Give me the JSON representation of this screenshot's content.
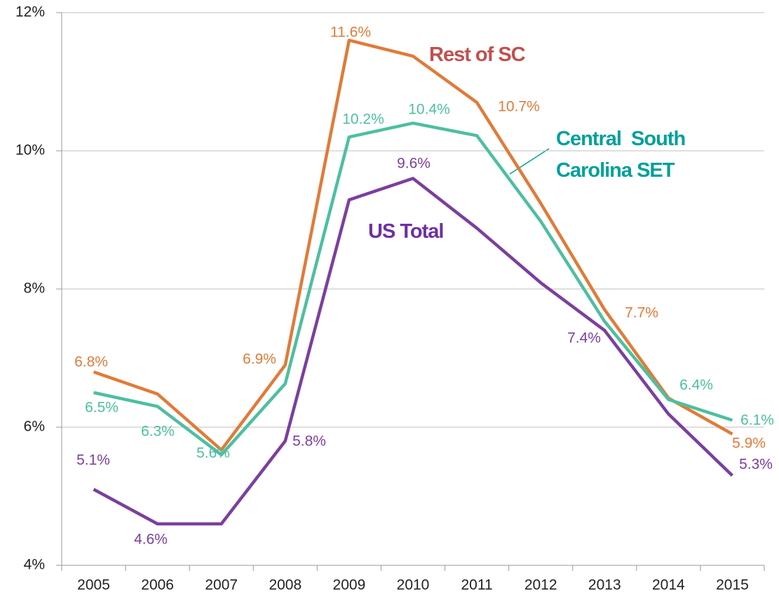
{
  "chart_data": {
    "type": "line",
    "categories": [
      "2005",
      "2006",
      "2007",
      "2008",
      "2009",
      "2010",
      "2011",
      "2012",
      "2013",
      "2014",
      "2015"
    ],
    "ylim": [
      4,
      12
    ],
    "yticks": [
      {
        "value": 4,
        "label": "4%"
      },
      {
        "value": 6,
        "label": "6%"
      },
      {
        "value": 8,
        "label": "8%"
      },
      {
        "value": 10,
        "label": "10%"
      },
      {
        "value": 12,
        "label": "12%"
      }
    ],
    "grid": true,
    "series": [
      {
        "name": "Rest of SC",
        "color": "#e07b39",
        "label_color": "#c0504d",
        "values": [
          6.8,
          6.48,
          5.67,
          6.9,
          11.6,
          11.37,
          10.7,
          9.24,
          7.7,
          6.42,
          5.9
        ],
        "value_labels": [
          "6.8%",
          null,
          null,
          "6.9%",
          "11.6%",
          null,
          "10.7%",
          null,
          "7.7%",
          null,
          "5.9%"
        ]
      },
      {
        "name": "Central  South Carolina SET",
        "color": "#4dbfa0",
        "label_color": "#00a09a",
        "values": [
          6.5,
          6.3,
          5.6,
          6.63,
          10.2,
          10.4,
          10.22,
          8.98,
          7.53,
          6.4,
          6.1
        ],
        "value_labels": [
          "6.5%",
          "6.3%",
          "5.6%",
          null,
          "10.2%",
          "10.4%",
          null,
          null,
          null,
          "6.4%",
          "6.1%"
        ]
      },
      {
        "name": "US Total",
        "color": "#7b3f9e",
        "label_color": "#7030a0",
        "values": [
          5.1,
          4.6,
          4.6,
          5.8,
          9.29,
          9.6,
          8.88,
          8.09,
          7.4,
          6.19,
          5.3
        ],
        "value_labels": [
          "5.1%",
          "4.6%",
          null,
          "5.8%",
          null,
          "9.6%",
          null,
          null,
          "7.4%",
          null,
          "5.3%"
        ]
      }
    ]
  }
}
